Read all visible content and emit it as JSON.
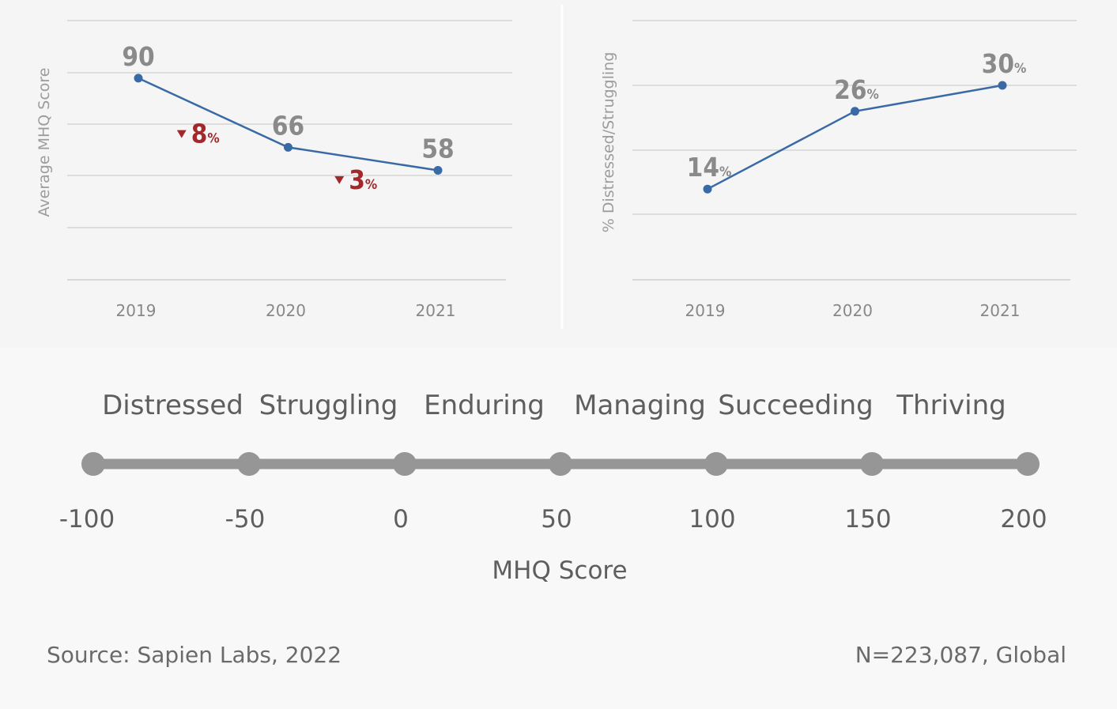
{
  "chart_data": [
    {
      "type": "line",
      "title": "",
      "xlabel": "",
      "ylabel": "Average MHQ Score",
      "categories": [
        "2019",
        "2020",
        "2021"
      ],
      "series": [
        {
          "values": [
            90,
            66,
            58
          ]
        }
      ],
      "data_labels": [
        "90",
        "66",
        "58"
      ],
      "ylim": [
        20,
        110
      ],
      "grid": true,
      "line_color": "#3a6aa5",
      "change_annotations": [
        {
          "between": [
            "2019",
            "2020"
          ],
          "direction": "down",
          "value": "8",
          "unit": "%",
          "color": "#a3282b"
        },
        {
          "between": [
            "2020",
            "2021"
          ],
          "direction": "down",
          "value": "3",
          "unit": "%",
          "color": "#a3282b"
        }
      ]
    },
    {
      "type": "line",
      "title": "",
      "xlabel": "",
      "ylabel": "% Distressed/Struggling",
      "categories": [
        "2019",
        "2020",
        "2021"
      ],
      "series": [
        {
          "values": [
            14,
            26,
            30
          ]
        }
      ],
      "data_labels": [
        {
          "value": "14",
          "unit": "%"
        },
        {
          "value": "26",
          "unit": "%"
        },
        {
          "value": "30",
          "unit": "%"
        }
      ],
      "ylim": [
        0,
        40
      ],
      "grid": true,
      "line_color": "#3a6aa5"
    }
  ],
  "scale": {
    "categories": [
      "Distressed",
      "Struggling",
      "Enduring",
      "Managing",
      "Succeeding",
      "Thriving"
    ],
    "ticks": [
      "-100",
      "-50",
      "0",
      "50",
      "100",
      "150",
      "200"
    ],
    "label": "MHQ Score",
    "color": "#969696"
  },
  "footer": {
    "source": "Source: Sapien Labs, 2022",
    "sample": "N=223,087, Global"
  }
}
